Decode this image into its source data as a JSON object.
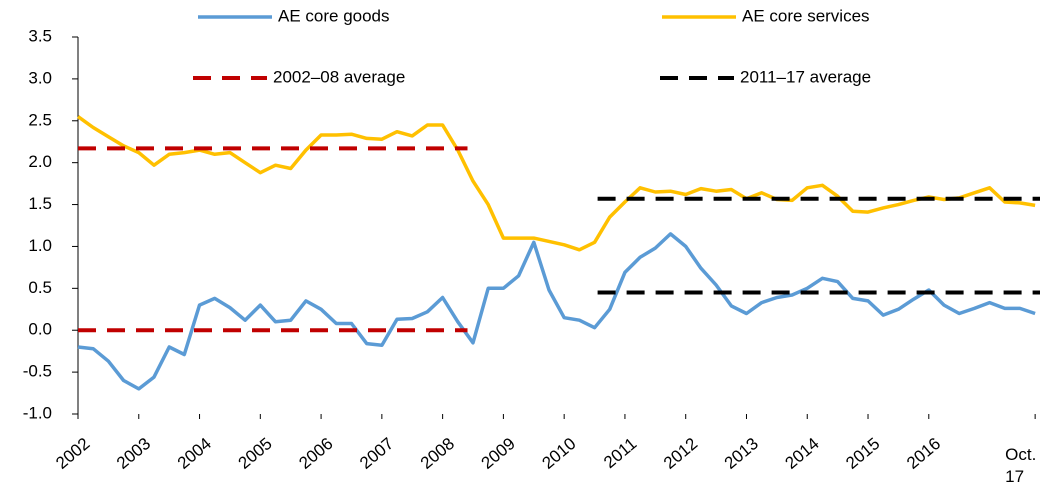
{
  "chart_data": {
    "type": "line",
    "x": [
      2002,
      2002.25,
      2002.5,
      2002.75,
      2003,
      2003.25,
      2003.5,
      2003.75,
      2004,
      2004.25,
      2004.5,
      2004.75,
      2005,
      2005.25,
      2005.5,
      2005.75,
      2006,
      2006.25,
      2006.5,
      2006.75,
      2007,
      2007.25,
      2007.5,
      2007.75,
      2008,
      2008.25,
      2008.5,
      2008.75,
      2009,
      2009.25,
      2009.5,
      2009.75,
      2010,
      2010.25,
      2010.5,
      2010.75,
      2011,
      2011.25,
      2011.5,
      2011.75,
      2012,
      2012.25,
      2012.5,
      2012.75,
      2013,
      2013.25,
      2013.5,
      2013.75,
      2014,
      2014.25,
      2014.5,
      2014.75,
      2015,
      2015.25,
      2015.5,
      2015.75,
      2016,
      2016.25,
      2016.5,
      2016.75,
      2017,
      2017.25,
      2017.5,
      2017.75
    ],
    "series": [
      {
        "name": "AE core goods",
        "color": "#5b9bd5",
        "values": [
          -0.2,
          -0.22,
          -0.37,
          -0.6,
          -0.7,
          -0.56,
          -0.2,
          -0.29,
          0.3,
          0.38,
          0.27,
          0.12,
          0.3,
          0.1,
          0.12,
          0.35,
          0.25,
          0.08,
          0.08,
          -0.16,
          -0.18,
          0.13,
          0.14,
          0.22,
          0.39,
          0.1,
          -0.15,
          0.5,
          0.5,
          0.65,
          1.05,
          0.48,
          0.15,
          0.12,
          0.03,
          0.25,
          0.69,
          0.87,
          0.98,
          1.15,
          1.0,
          0.74,
          0.54,
          0.29,
          0.2,
          0.33,
          0.39,
          0.42,
          0.5,
          0.62,
          0.58,
          0.38,
          0.35,
          0.18,
          0.25,
          0.37,
          0.48,
          0.3,
          0.2,
          0.26,
          0.33,
          0.26,
          0.26,
          0.2
        ]
      },
      {
        "name": "AE core services",
        "color": "#ffc000",
        "values": [
          2.55,
          2.42,
          2.31,
          2.2,
          2.12,
          1.97,
          2.1,
          2.12,
          2.15,
          2.1,
          2.12,
          2.0,
          1.88,
          1.97,
          1.93,
          2.15,
          2.33,
          2.33,
          2.34,
          2.29,
          2.28,
          2.37,
          2.32,
          2.45,
          2.45,
          2.15,
          1.78,
          1.5,
          1.1,
          1.1,
          1.1,
          1.06,
          1.02,
          0.96,
          1.05,
          1.35,
          1.53,
          1.7,
          1.65,
          1.66,
          1.62,
          1.69,
          1.66,
          1.68,
          1.57,
          1.64,
          1.56,
          1.55,
          1.7,
          1.73,
          1.6,
          1.42,
          1.41,
          1.46,
          1.5,
          1.55,
          1.59,
          1.56,
          1.58,
          1.64,
          1.7,
          1.53,
          1.52,
          1.49
        ]
      },
      {
        "name": "2002–08 average",
        "color": "#c00000",
        "dashed": true,
        "x": [
          2002,
          2008.41,
          2002,
          2002,
          2008.41
        ],
        "values": [
          2.17,
          2.17,
          null,
          0,
          0
        ]
      },
      {
        "name": "2011–17 average",
        "color": "#000000",
        "dashed": true,
        "x": [
          2010.55,
          2017.83,
          2010.55,
          2010.55,
          2017.83
        ],
        "values": [
          1.57,
          1.57,
          null,
          0.45,
          0.45
        ]
      }
    ],
    "xlim": [
      2002,
      2017.83
    ],
    "xticks": [
      2002,
      2003,
      2004,
      2005,
      2006,
      2007,
      2008,
      2009,
      2010,
      2011,
      2012,
      2013,
      2014,
      2015,
      2016,
      {
        "value": 2017.75,
        "label": "Oct. 17"
      }
    ],
    "ylim": [
      -1.0,
      3.5
    ],
    "yticks": [
      {
        "value": -1.0,
        "label": "-1.0"
      },
      {
        "value": -0.5,
        "label": "-0.5"
      },
      {
        "value": 0,
        "label": "0.0"
      },
      {
        "value": 0.5,
        "label": "0.5"
      },
      {
        "value": 1.0,
        "label": "1.0"
      },
      {
        "value": 1.5,
        "label": "1.5"
      },
      {
        "value": 2.0,
        "label": "2.0"
      },
      {
        "value": 2.5,
        "label": "2.5"
      },
      {
        "value": 3.0,
        "label": "3.0"
      },
      {
        "value": 3.5,
        "label": "3.5"
      }
    ]
  }
}
